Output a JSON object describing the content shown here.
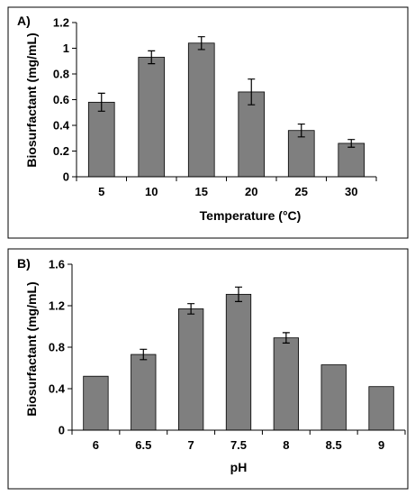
{
  "chart_data": [
    {
      "panel_label": "A)",
      "type": "bar",
      "categories": [
        "5",
        "10",
        "15",
        "20",
        "25",
        "30"
      ],
      "values": [
        0.58,
        0.93,
        1.04,
        0.66,
        0.36,
        0.26
      ],
      "errors": [
        0.07,
        0.05,
        0.05,
        0.1,
        0.05,
        0.03
      ],
      "xlabel": "Temperature (°C)",
      "ylabel": "Biosurfactant (mg/mL)",
      "ylim": [
        0,
        1.2
      ],
      "yticks": [
        "0",
        "0.2",
        "0.4",
        "0.6",
        "0.8",
        "1",
        "1.2"
      ],
      "bar_color": "#7f7f7f",
      "grid": false
    },
    {
      "panel_label": "B)",
      "type": "bar",
      "categories": [
        "6",
        "6.5",
        "7",
        "7.5",
        "8",
        "8.5",
        "9"
      ],
      "values": [
        0.52,
        0.73,
        1.17,
        1.31,
        0.89,
        0.63,
        0.42
      ],
      "errors": [
        0,
        0.05,
        0.05,
        0.07,
        0.05,
        0,
        0
      ],
      "xlabel": "pH",
      "ylabel": "Biosurfactant (mg/mL)",
      "ylim": [
        0,
        1.6
      ],
      "yticks": [
        "0",
        "0.4",
        "0.8",
        "1.2",
        "1.6"
      ],
      "bar_color": "#7f7f7f",
      "grid": false
    }
  ]
}
